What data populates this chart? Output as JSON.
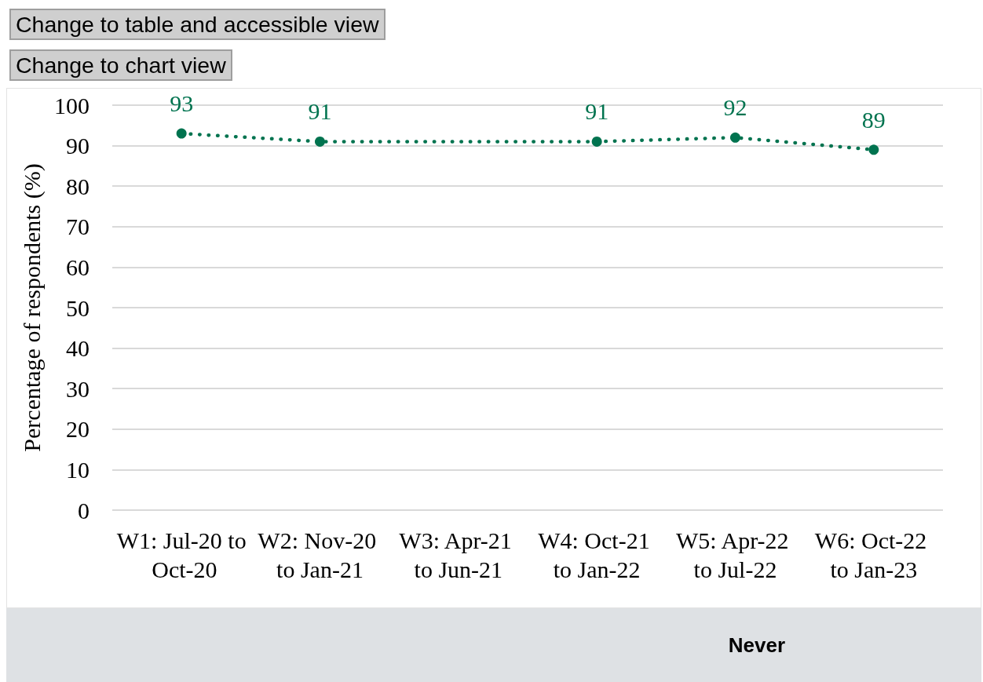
{
  "chart_data": {
    "type": "line",
    "categories": [
      "W1: Jul-20 to Oct-20",
      "W2: Nov-20 to Jan-21",
      "W3: Apr-21 to Jun-21",
      "W4: Oct-21 to Jan-22",
      "W5: Apr-22 to Jul-22",
      "W6: Oct-22 to Jan-23"
    ],
    "series": [
      {
        "color": "#00734f",
        "values": [
          93,
          91,
          null,
          91,
          92,
          89
        ]
      }
    ],
    "ylabel": "Percentage of respondents (%)",
    "ylim": [
      0,
      100
    ],
    "yticks": [
      0,
      10,
      20,
      30,
      40,
      50,
      60,
      70,
      80,
      90,
      100
    ],
    "grid": "y",
    "marker": "circle",
    "line_style": "dotted",
    "data_labels": true,
    "annotations": [
      "Change to table and accessible view",
      "Change to chart view",
      "Never"
    ]
  }
}
